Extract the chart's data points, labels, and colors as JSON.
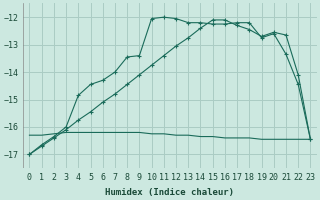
{
  "xlabel": "Humidex (Indice chaleur)",
  "background_color": "#cce8e0",
  "grid_color": "#aaccC4",
  "line_color": "#1a6b5a",
  "xlim": [
    -0.5,
    23.5
  ],
  "ylim": [
    -17.5,
    -11.5
  ],
  "yticks": [
    -17,
    -16,
    -15,
    -14,
    -13,
    -12
  ],
  "xticks": [
    0,
    1,
    2,
    3,
    4,
    5,
    6,
    7,
    8,
    9,
    10,
    11,
    12,
    13,
    14,
    15,
    16,
    17,
    18,
    19,
    20,
    21,
    22,
    23
  ],
  "line1_x": [
    0,
    1,
    2,
    3,
    4,
    5,
    6,
    7,
    8,
    9,
    10,
    11,
    12,
    13,
    14,
    15,
    16,
    17,
    18,
    19,
    20,
    21,
    22,
    23
  ],
  "line1_y": [
    -17.0,
    -16.65,
    -16.35,
    -16.0,
    -14.85,
    -14.45,
    -14.3,
    -14.0,
    -13.45,
    -13.4,
    -12.05,
    -12.0,
    -12.05,
    -12.2,
    -12.2,
    -12.25,
    -12.25,
    -12.2,
    -12.2,
    -12.75,
    -12.6,
    -13.35,
    -14.45,
    -16.45
  ],
  "line2_x": [
    0,
    1,
    2,
    3,
    4,
    5,
    6,
    7,
    8,
    9,
    10,
    11,
    12,
    13,
    14,
    15,
    16,
    17,
    18,
    19,
    20,
    21,
    22,
    23
  ],
  "line2_y": [
    -17.0,
    -16.7,
    -16.4,
    -16.1,
    -15.75,
    -15.45,
    -15.1,
    -14.8,
    -14.45,
    -14.1,
    -13.75,
    -13.4,
    -13.05,
    -12.75,
    -12.4,
    -12.1,
    -12.1,
    -12.3,
    -12.45,
    -12.7,
    -12.55,
    -12.65,
    -14.1,
    -16.45
  ],
  "line3_x": [
    0,
    1,
    2,
    3,
    4,
    5,
    6,
    7,
    8,
    9,
    10,
    11,
    12,
    13,
    14,
    15,
    16,
    17,
    18,
    19,
    20,
    21,
    22,
    23
  ],
  "line3_y": [
    -16.3,
    -16.3,
    -16.25,
    -16.2,
    -16.2,
    -16.2,
    -16.2,
    -16.2,
    -16.2,
    -16.2,
    -16.25,
    -16.25,
    -16.3,
    -16.3,
    -16.35,
    -16.35,
    -16.4,
    -16.4,
    -16.4,
    -16.45,
    -16.45,
    -16.45,
    -16.45,
    -16.45
  ]
}
